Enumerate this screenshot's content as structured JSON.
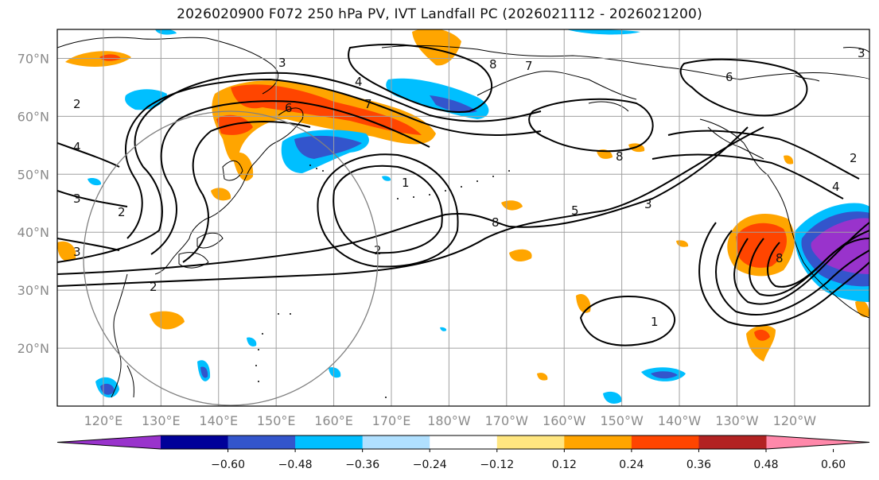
{
  "title": "2026020900 F072 250 hPa PV, IVT Landfall PC (2026021112 - 2026021200)",
  "map": {
    "lat_labels": [
      "70°N",
      "60°N",
      "50°N",
      "40°N",
      "30°N",
      "20°N"
    ],
    "lat_values": [
      70,
      60,
      50,
      40,
      30,
      20
    ],
    "lon_labels": [
      "120°E",
      "130°E",
      "140°E",
      "150°E",
      "160°E",
      "170°E",
      "180°W",
      "170°W",
      "160°W",
      "150°W",
      "140°W",
      "130°W",
      "120°W"
    ],
    "lon_values": [
      120,
      130,
      140,
      150,
      160,
      170,
      180,
      190,
      200,
      210,
      220,
      230,
      240
    ],
    "lat_range": [
      10,
      75
    ],
    "lon_range": [
      112,
      253
    ],
    "pv_contour_labels": [
      "3",
      "4",
      "6",
      "7",
      "8",
      "7",
      "6",
      "2",
      "4",
      "3",
      "3",
      "2",
      "1",
      "2",
      "2",
      "8",
      "5",
      "3",
      "1",
      "8",
      "4",
      "8",
      "2",
      "3"
    ]
  },
  "colorbar": {
    "ticks": [
      "−0.60",
      "−0.48",
      "−0.36",
      "−0.24",
      "−0.12",
      "0.12",
      "0.24",
      "0.36",
      "0.48",
      "0.60"
    ],
    "colors": [
      "#9933cc",
      "#000099",
      "#3355cc",
      "#00bfff",
      "#b0e0ff",
      "#ffffff",
      "#ffe680",
      "#ffa500",
      "#ff4500",
      "#b22222",
      "#ff88aa"
    ],
    "extend": "both"
  }
}
